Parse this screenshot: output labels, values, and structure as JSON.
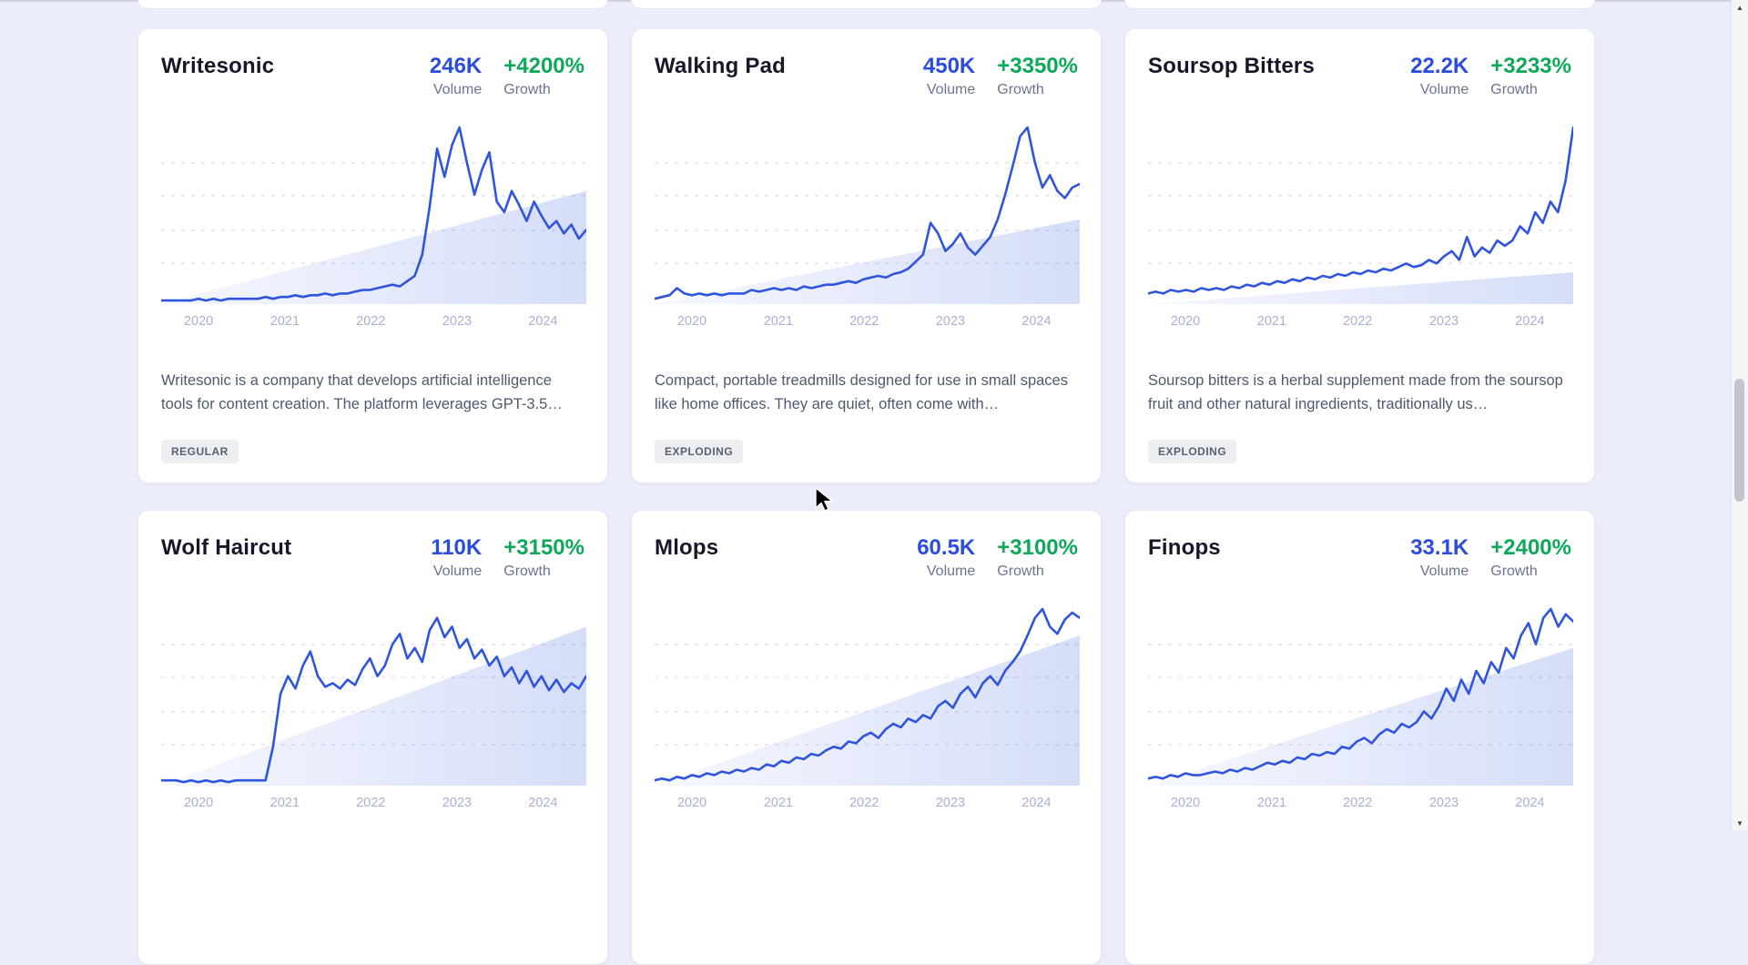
{
  "page": {
    "background": "#ecedfa",
    "card_background": "#ffffff",
    "accent_blue": "#2b4ce0",
    "accent_green": "#0da858",
    "chart_line_color": "#2f55e0",
    "chart_fill_color": "#2f55e0",
    "gridline_color": "#d9dcea",
    "axis_label_color": "#a8b0d4"
  },
  "labels": {
    "volume": "Volume",
    "growth": "Growth"
  },
  "icons": {
    "scroll_up": "▲",
    "scroll_down": "▼"
  },
  "cards": [
    {
      "title": "Writesonic",
      "volume": "246K",
      "growth": "+4200%",
      "description": "Writesonic is a company that develops artificial intelligence tools for content creation. The platform leverages GPT-3.5…",
      "badge": "REGULAR",
      "chart_index": 0
    },
    {
      "title": "Walking Pad",
      "volume": "450K",
      "growth": "+3350%",
      "description": "Compact, portable treadmills designed for use in small spaces like home offices. They are quiet, often come with…",
      "badge": "EXPLODING",
      "chart_index": 1
    },
    {
      "title": "Soursop Bitters",
      "volume": "22.2K",
      "growth": "+3233%",
      "description": "Soursop bitters is a herbal supplement made from the soursop fruit and other natural ingredients, traditionally us…",
      "badge": "EXPLODING",
      "chart_index": 2
    },
    {
      "title": "Wolf Haircut",
      "volume": "110K",
      "growth": "+3150%",
      "chart_index": 3
    },
    {
      "title": "Mlops",
      "volume": "60.5K",
      "growth": "+3100%",
      "chart_index": 4
    },
    {
      "title": "Finops",
      "volume": "33.1K",
      "growth": "+2400%",
      "chart_index": 5
    }
  ],
  "chart_data": [
    {
      "type": "line",
      "title": "Writesonic",
      "x_labels": [
        "2020",
        "2021",
        "2022",
        "2023",
        "2024"
      ],
      "y_range": [
        0,
        100
      ],
      "trend_area_peak": 0.64,
      "values": [
        2,
        2,
        2,
        2,
        2,
        3,
        2,
        3,
        2,
        3,
        3,
        3,
        3,
        3,
        4,
        3,
        4,
        4,
        5,
        4,
        5,
        5,
        6,
        5,
        6,
        6,
        7,
        8,
        8,
        9,
        10,
        11,
        10,
        13,
        16,
        28,
        55,
        88,
        72,
        90,
        100,
        80,
        62,
        76,
        86,
        58,
        52,
        64,
        56,
        47,
        58,
        50,
        43,
        47,
        40,
        45,
        37,
        42
      ]
    },
    {
      "type": "line",
      "title": "Walking Pad",
      "x_labels": [
        "2020",
        "2021",
        "2022",
        "2023",
        "2024"
      ],
      "y_range": [
        0,
        100
      ],
      "trend_area_peak": 0.48,
      "values": [
        3,
        4,
        5,
        9,
        6,
        5,
        6,
        5,
        6,
        5,
        6,
        6,
        6,
        8,
        7,
        8,
        9,
        8,
        9,
        8,
        10,
        9,
        10,
        11,
        11,
        12,
        13,
        12,
        14,
        15,
        16,
        15,
        17,
        18,
        20,
        24,
        28,
        46,
        40,
        30,
        34,
        40,
        32,
        28,
        33,
        38,
        48,
        62,
        78,
        95,
        100,
        80,
        66,
        73,
        64,
        60,
        66,
        68
      ]
    },
    {
      "type": "line",
      "title": "Soursop Bitters",
      "x_labels": [
        "2020",
        "2021",
        "2022",
        "2023",
        "2024"
      ],
      "y_range": [
        0,
        100
      ],
      "trend_area_peak": 0.18,
      "values": [
        6,
        7,
        6,
        8,
        7,
        8,
        7,
        9,
        8,
        9,
        8,
        10,
        9,
        11,
        10,
        12,
        11,
        13,
        12,
        14,
        13,
        15,
        14,
        16,
        15,
        17,
        16,
        18,
        17,
        19,
        18,
        20,
        19,
        21,
        23,
        21,
        22,
        25,
        23,
        27,
        30,
        25,
        38,
        27,
        32,
        29,
        36,
        33,
        36,
        44,
        40,
        52,
        46,
        58,
        52,
        70,
        100
      ]
    },
    {
      "type": "line",
      "title": "Wolf Haircut",
      "x_labels": [
        "2020",
        "2021",
        "2022",
        "2023",
        "2024"
      ],
      "y_range": [
        0,
        100
      ],
      "trend_area_peak": 0.9,
      "values": [
        3,
        3,
        3,
        2,
        3,
        2,
        3,
        2,
        3,
        2,
        3,
        3,
        3,
        3,
        3,
        22,
        52,
        62,
        55,
        68,
        76,
        62,
        56,
        58,
        55,
        60,
        57,
        66,
        72,
        62,
        68,
        80,
        86,
        72,
        78,
        70,
        88,
        95,
        84,
        90,
        78,
        83,
        72,
        77,
        68,
        73,
        62,
        67,
        58,
        65,
        56,
        62,
        54,
        60,
        53,
        58,
        55,
        62
      ]
    },
    {
      "type": "line",
      "title": "Mlops",
      "x_labels": [
        "2020",
        "2021",
        "2022",
        "2023",
        "2024"
      ],
      "y_range": [
        0,
        100
      ],
      "trend_area_peak": 0.85,
      "values": [
        3,
        4,
        3,
        5,
        4,
        6,
        5,
        7,
        6,
        8,
        7,
        9,
        8,
        10,
        9,
        12,
        11,
        14,
        13,
        16,
        15,
        18,
        17,
        20,
        22,
        21,
        25,
        24,
        28,
        30,
        27,
        32,
        35,
        33,
        38,
        36,
        40,
        38,
        45,
        48,
        44,
        52,
        56,
        50,
        58,
        62,
        57,
        65,
        70,
        76,
        85,
        95,
        100,
        90,
        86,
        94,
        98,
        95
      ]
    },
    {
      "type": "line",
      "title": "Finops",
      "x_labels": [
        "2020",
        "2021",
        "2022",
        "2023",
        "2024"
      ],
      "y_range": [
        0,
        100
      ],
      "trend_area_peak": 0.78,
      "values": [
        4,
        5,
        4,
        6,
        5,
        7,
        6,
        6,
        7,
        8,
        7,
        9,
        8,
        10,
        9,
        11,
        13,
        12,
        14,
        13,
        16,
        15,
        18,
        17,
        19,
        18,
        22,
        21,
        25,
        27,
        24,
        29,
        32,
        30,
        35,
        33,
        36,
        42,
        38,
        45,
        55,
        48,
        60,
        52,
        65,
        58,
        70,
        64,
        78,
        72,
        85,
        92,
        80,
        95,
        100,
        90,
        97,
        93
      ]
    }
  ]
}
